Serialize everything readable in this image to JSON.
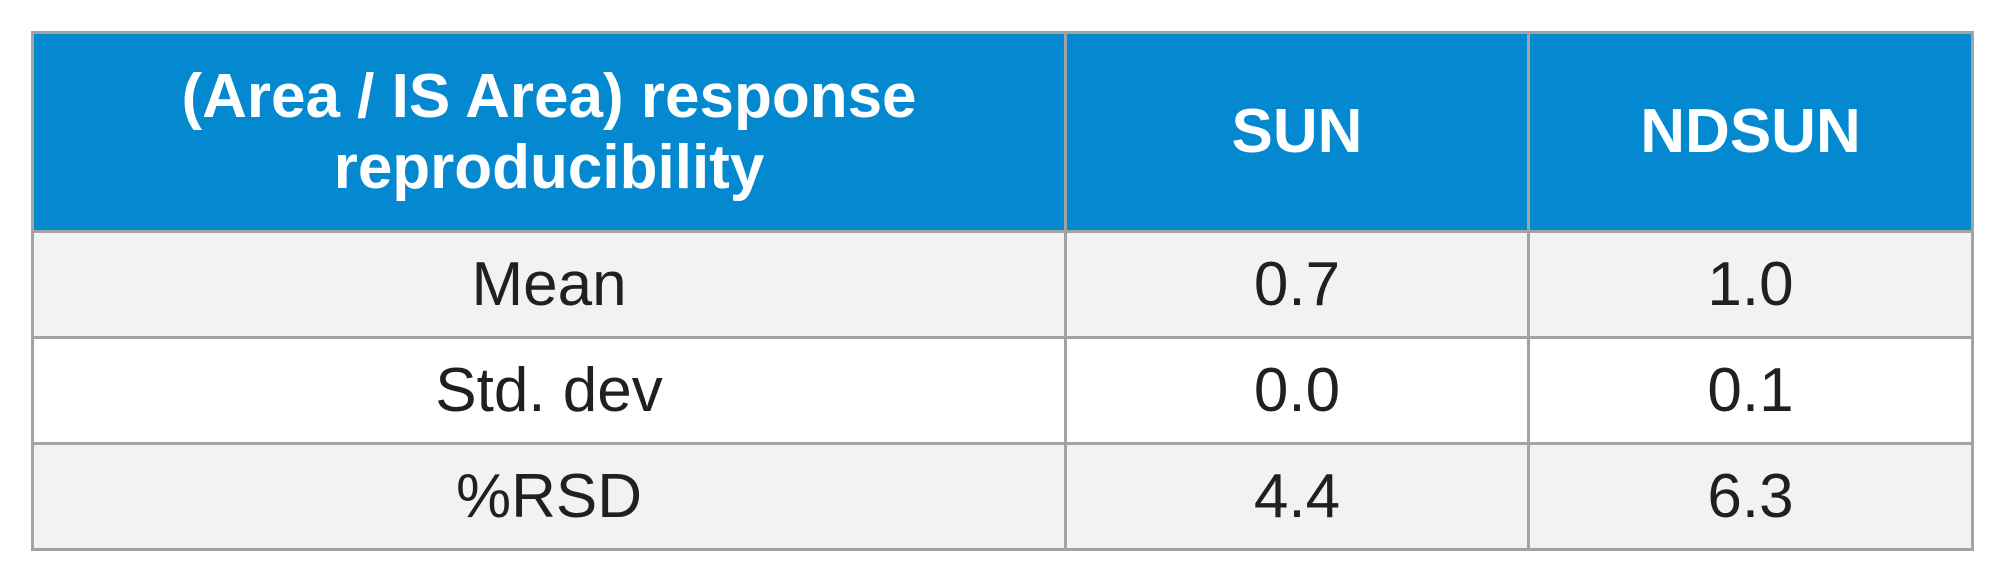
{
  "table": {
    "header": [
      "(Area / IS Area) response reproducibility",
      "SUN",
      "NDSUN"
    ],
    "rows": [
      [
        "Mean",
        "0.7",
        "1.0"
      ],
      [
        "Std. dev",
        "0.0",
        "0.1"
      ],
      [
        "%RSD",
        "4.4",
        "6.3"
      ]
    ]
  }
}
